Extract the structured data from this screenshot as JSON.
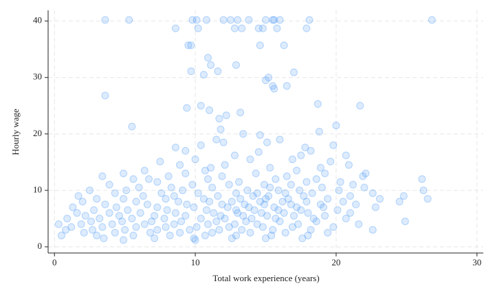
{
  "chart_data": {
    "type": "scatter",
    "x_label": "Total work experience (years)",
    "y_label": "Hourly wage",
    "color": "#3b8ef5",
    "grid": true,
    "xlim": [
      -0.45,
      30.45
    ],
    "ylim": [
      -1.1,
      41.9
    ],
    "xticks": [
      0,
      10,
      20,
      30
    ],
    "yticks": [
      0,
      10,
      20,
      30,
      40
    ],
    "x": [
      3.6,
      5.3,
      9.8,
      10.1,
      10.8,
      12.0,
      12.5,
      13.0,
      13.8,
      15.0,
      15.5,
      15.6,
      16.0,
      18.1,
      26.8,
      8.6,
      10.2,
      12.8,
      13.3,
      14.5,
      14.8,
      15.8,
      17.9,
      9.5,
      9.7,
      14.6,
      16.3,
      10.9,
      11.1,
      12.9,
      9.7,
      11.6,
      10.6,
      17.0,
      15.2,
      15.0,
      15.5,
      16.5,
      15.6,
      3.6,
      18.7,
      10.4,
      21.7,
      9.4,
      11.0,
      13.2,
      12.2,
      11.7,
      20.0,
      5.5,
      11.8,
      18.8,
      13.4,
      14.6,
      11.5,
      16.0,
      12.0,
      15.1,
      10.4,
      19.8,
      8.6,
      17.8,
      9.3,
      18.2,
      14.5,
      12.8,
      17.5,
      20.7,
      10.0,
      13.9,
      16.9,
      7.5,
      19.6,
      8.9,
      12.1,
      20.9,
      11.1,
      15.3,
      18.9,
      6.4,
      10.7,
      17.2,
      4.9,
      9.3,
      14.3,
      19.2,
      22.1,
      3.4,
      8.1,
      11.9,
      16.5,
      21.9,
      5.6,
      6.7,
      10.9,
      15.7,
      18.6,
      26.1,
      7.3,
      13.1,
      17.9,
      20.3,
      3.9,
      9.8,
      12.4,
      14.9,
      16.8,
      21.2,
      6.0,
      8.3,
      11.2,
      15.3,
      19.0,
      22.0,
      2.5,
      5.1,
      9.1,
      13.7,
      15.9,
      17.4,
      20.2,
      26.2,
      4.3,
      7.6,
      10.2,
      12.9,
      14.4,
      16.4,
      18.3,
      22.6,
      1.7,
      6.3,
      8.5,
      11.6,
      14.1,
      15.2,
      17.7,
      21.0,
      24.8,
      3.0,
      4.9,
      7.9,
      10.6,
      13.2,
      15.0,
      16.6,
      19.4,
      23.1,
      26.5,
      2.0,
      5.8,
      8.8,
      11.0,
      12.6,
      14.6,
      16.2,
      17.9,
      20.5,
      24.5,
      3.6,
      6.6,
      9.4,
      11.9,
      13.5,
      14.9,
      16.8,
      18.9,
      21.4,
      1.3,
      4.4,
      7.3,
      9.9,
      12.3,
      13.8,
      15.6,
      17.2,
      19.1,
      22.8,
      2.8,
      5.2,
      8.0,
      10.8,
      12.9,
      14.2,
      15.9,
      17.5,
      20.1,
      1.6,
      3.9,
      6.1,
      8.6,
      11.3,
      13.0,
      14.7,
      16.3,
      18.0,
      21.0,
      2.2,
      4.6,
      7.1,
      9.3,
      11.8,
      13.4,
      15.1,
      17.0,
      19.2,
      0.9,
      3.2,
      5.5,
      7.8,
      10.4,
      12.1,
      14.0,
      15.7,
      18.4,
      20.7,
      2.6,
      4.8,
      6.9,
      9.0,
      11.5,
      13.6,
      16.0,
      18.6,
      24.9,
      0.3,
      1.9,
      4.1,
      6.4,
      8.5,
      10.9,
      12.8,
      14.4,
      17.3,
      21.6,
      1.2,
      3.4,
      5.8,
      7.9,
      10.1,
      12.4,
      14.8,
      16.9,
      19.8,
      0.8,
      2.7,
      5.0,
      7.3,
      9.6,
      11.7,
      13.3,
      15.5,
      18.2,
      22.6,
      2.1,
      4.3,
      6.8,
      8.9,
      11.2,
      13.9,
      16.4,
      19.4,
      0.5,
      3.0,
      5.6,
      8.2,
      10.7,
      12.9,
      15.4,
      18.0,
      3.5,
      7.1,
      9.9,
      12.6,
      15.0,
      17.6,
      4.9,
      10.0
    ],
    "values": [
      40.2,
      40.2,
      40.2,
      40.2,
      40.2,
      40.2,
      40.2,
      40.2,
      40.2,
      40.2,
      40.2,
      40.2,
      40.2,
      40.2,
      40.2,
      38.7,
      38.7,
      38.7,
      38.7,
      38.7,
      38.7,
      38.7,
      38.7,
      35.7,
      35.7,
      35.7,
      35.7,
      33.5,
      32.2,
      32.2,
      31.1,
      31.1,
      30.5,
      30.9,
      30.0,
      29.5,
      28.5,
      28.5,
      28.0,
      26.8,
      25.3,
      25.0,
      25.0,
      24.6,
      24.2,
      23.8,
      23.3,
      22.7,
      21.5,
      21.3,
      20.8,
      20.4,
      20.0,
      19.8,
      19.0,
      19.0,
      18.5,
      18.5,
      18.0,
      18.0,
      17.6,
      17.6,
      17.0,
      17.0,
      16.8,
      16.2,
      16.2,
      16.2,
      15.5,
      15.5,
      15.5,
      15.1,
      15.1,
      14.5,
      14.5,
      14.5,
      14.0,
      14.0,
      14.0,
      13.5,
      13.5,
      13.5,
      13.0,
      13.0,
      13.0,
      13.0,
      13.0,
      12.5,
      12.5,
      12.5,
      12.5,
      12.5,
      12.0,
      12.0,
      12.0,
      12.0,
      12.0,
      12.0,
      11.5,
      11.5,
      11.5,
      11.5,
      11.0,
      11.0,
      11.0,
      11.0,
      11.0,
      11.0,
      10.5,
      10.5,
      10.5,
      10.5,
      10.5,
      10.5,
      10.0,
      10.0,
      10.0,
      10.0,
      10.0,
      10.0,
      10.0,
      10.0,
      9.5,
      9.5,
      9.5,
      9.5,
      9.5,
      9.5,
      9.5,
      9.5,
      9.0,
      9.0,
      9.0,
      9.0,
      9.0,
      9.0,
      9.0,
      9.0,
      9.0,
      8.5,
      8.5,
      8.5,
      8.5,
      8.5,
      8.5,
      8.5,
      8.5,
      8.5,
      8.5,
      8.0,
      8.0,
      8.0,
      8.0,
      8.0,
      8.0,
      8.0,
      8.0,
      8.0,
      8.0,
      7.5,
      7.5,
      7.5,
      7.5,
      7.5,
      7.5,
      7.5,
      7.5,
      7.5,
      7.0,
      7.0,
      7.0,
      7.0,
      7.0,
      7.0,
      7.0,
      7.0,
      7.0,
      7.0,
      6.5,
      6.5,
      6.5,
      6.5,
      6.5,
      6.5,
      6.5,
      6.5,
      6.5,
      6.0,
      6.0,
      6.0,
      6.0,
      6.0,
      6.0,
      6.0,
      6.0,
      6.0,
      6.0,
      5.5,
      5.5,
      5.5,
      5.5,
      5.5,
      5.5,
      5.5,
      5.5,
      5.5,
      5.0,
      5.0,
      5.0,
      5.0,
      5.0,
      5.0,
      5.0,
      5.0,
      5.0,
      5.0,
      4.5,
      4.5,
      4.5,
      4.5,
      4.5,
      4.5,
      4.5,
      4.5,
      4.5,
      4.0,
      4.0,
      4.0,
      4.0,
      4.0,
      4.0,
      4.0,
      4.0,
      4.0,
      4.0,
      3.5,
      3.5,
      3.5,
      3.5,
      3.5,
      3.5,
      3.5,
      3.5,
      3.5,
      3.0,
      3.0,
      3.0,
      3.0,
      3.0,
      3.0,
      3.0,
      3.0,
      3.0,
      3.0,
      2.5,
      2.5,
      2.5,
      2.5,
      2.5,
      2.5,
      2.5,
      2.5,
      2.0,
      2.0,
      2.0,
      2.0,
      2.0,
      2.0,
      2.0,
      2.0,
      1.5,
      1.5,
      1.5,
      1.5,
      1.5,
      1.5,
      1.2,
      1.2
    ]
  }
}
